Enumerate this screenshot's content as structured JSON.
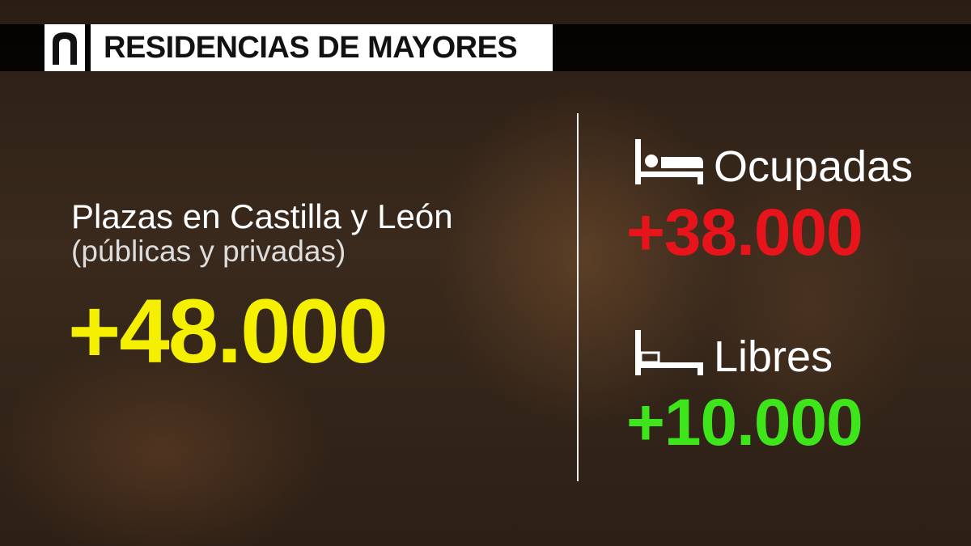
{
  "header": {
    "title": "RESIDENCIAS DE MAYORES"
  },
  "main": {
    "label": "Plazas en Castilla y León",
    "sublabel": "(públicas y privadas)",
    "value": "+48.000"
  },
  "stats": [
    {
      "label": "Ocupadas",
      "value": "+38.000"
    },
    {
      "label": "Libres",
      "value": "+10.000"
    }
  ]
}
